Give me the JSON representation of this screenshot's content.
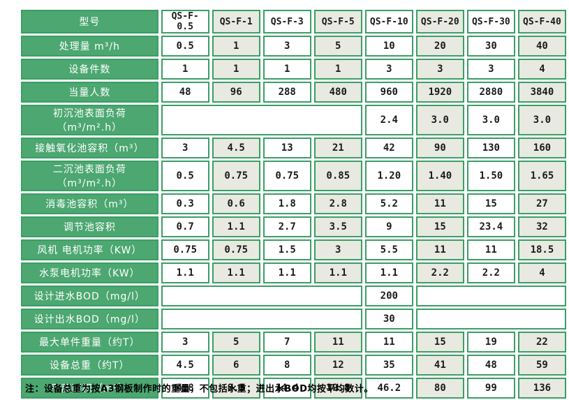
{
  "colors": {
    "label_green": "#4ca771",
    "border_green": "#3b9e66",
    "tint_cell": "#e8e9e0",
    "cell_white": "#ffffff",
    "value_text": "#1b1b1b"
  },
  "table": {
    "header_label": "型号",
    "models": [
      "QS-F-0.5",
      "QS-F-1",
      "QS-F-3",
      "QS-F-5",
      "QS-F-10",
      "QS-F-20",
      "QS-F-30",
      "QS-F-40"
    ],
    "rows": [
      {
        "label": "处理量 m³/h",
        "cells": [
          {
            "t": "0.5"
          },
          {
            "t": "1"
          },
          {
            "t": "3"
          },
          {
            "t": "5"
          },
          {
            "t": "10"
          },
          {
            "t": "20"
          },
          {
            "t": "30"
          },
          {
            "t": "40"
          }
        ]
      },
      {
        "label": "设备件数",
        "cells": [
          {
            "t": "1"
          },
          {
            "t": "1"
          },
          {
            "t": "1"
          },
          {
            "t": "1"
          },
          {
            "t": "3"
          },
          {
            "t": "3"
          },
          {
            "t": "3"
          },
          {
            "t": "4"
          }
        ]
      },
      {
        "label": "当量人数",
        "cells": [
          {
            "t": "48"
          },
          {
            "t": "96"
          },
          {
            "t": "288"
          },
          {
            "t": "480"
          },
          {
            "t": "960"
          },
          {
            "t": "1920"
          },
          {
            "t": "2880"
          },
          {
            "t": "3840"
          }
        ]
      },
      {
        "label": "初沉池表面负荷（m³/m².h）",
        "cells": [
          {
            "t": "",
            "span": 4
          },
          {
            "t": "2.4"
          },
          {
            "t": "3.0"
          },
          {
            "t": "3.0"
          },
          {
            "t": "3.0"
          }
        ]
      },
      {
        "label": "接触氧化池容积（m³）",
        "cells": [
          {
            "t": "3"
          },
          {
            "t": "4.5"
          },
          {
            "t": "13"
          },
          {
            "t": "21"
          },
          {
            "t": "42"
          },
          {
            "t": "90"
          },
          {
            "t": "130"
          },
          {
            "t": "160"
          }
        ]
      },
      {
        "label": "二沉池表面负荷（m³/m².h）",
        "cells": [
          {
            "t": "0.5"
          },
          {
            "t": "0.75"
          },
          {
            "t": "0.75"
          },
          {
            "t": "0.85"
          },
          {
            "t": "1.20"
          },
          {
            "t": "1.40"
          },
          {
            "t": "1.50"
          },
          {
            "t": "1.65"
          }
        ]
      },
      {
        "label": "消毒池容积（m³）",
        "cells": [
          {
            "t": "0.3"
          },
          {
            "t": "0.6"
          },
          {
            "t": "1.8"
          },
          {
            "t": "2.8"
          },
          {
            "t": "5.2"
          },
          {
            "t": "11"
          },
          {
            "t": "15"
          },
          {
            "t": "27"
          }
        ]
      },
      {
        "label": "调节池容积",
        "cells": [
          {
            "t": "0.7"
          },
          {
            "t": "1.1"
          },
          {
            "t": "2.7"
          },
          {
            "t": "3.5"
          },
          {
            "t": "9"
          },
          {
            "t": "15"
          },
          {
            "t": "23.4"
          },
          {
            "t": "32"
          }
        ]
      },
      {
        "label": "风机 电机功率（KW）",
        "cells": [
          {
            "t": "0.75"
          },
          {
            "t": "0.75"
          },
          {
            "t": "1.5"
          },
          {
            "t": "3"
          },
          {
            "t": "5.5"
          },
          {
            "t": "11"
          },
          {
            "t": "11"
          },
          {
            "t": "18.5"
          }
        ]
      },
      {
        "label": "水泵电机功率（KW）",
        "cells": [
          {
            "t": "1.1"
          },
          {
            "t": "1.1"
          },
          {
            "t": "1.1"
          },
          {
            "t": "1.1"
          },
          {
            "t": "1.1"
          },
          {
            "t": "2.2"
          },
          {
            "t": "2.2"
          },
          {
            "t": "4"
          }
        ]
      },
      {
        "label": "设计进水BOD（mg/l）",
        "cells": [
          {
            "t": "",
            "span": 4
          },
          {
            "t": "200"
          },
          {
            "t": "",
            "span": 3
          }
        ]
      },
      {
        "label": "设计出水BOD（mg/l）",
        "cells": [
          {
            "t": "",
            "span": 4
          },
          {
            "t": "30"
          },
          {
            "t": "",
            "span": 3
          }
        ]
      },
      {
        "label": "最大单件重量（约T）",
        "cells": [
          {
            "t": "3"
          },
          {
            "t": "5"
          },
          {
            "t": "7"
          },
          {
            "t": "11"
          },
          {
            "t": "11"
          },
          {
            "t": "15"
          },
          {
            "t": "19"
          },
          {
            "t": "22"
          }
        ]
      },
      {
        "label": "设备总重（约T）",
        "cells": [
          {
            "t": "4.5"
          },
          {
            "t": "6"
          },
          {
            "t": "8"
          },
          {
            "t": "12"
          },
          {
            "t": "35"
          },
          {
            "t": "41"
          },
          {
            "t": "48"
          },
          {
            "t": "59"
          }
        ]
      },
      {
        "label": "平面面积（m²）",
        "cells": [
          {
            "t": "4.8"
          },
          {
            "t": "8.3"
          },
          {
            "t": "14.4"
          },
          {
            "t": "19.8"
          },
          {
            "t": "46.2"
          },
          {
            "t": "80"
          },
          {
            "t": "99"
          },
          {
            "t": "136"
          }
        ]
      }
    ]
  },
  "note": "注：设备总重为按A3钢板制作时的重量，不包括水重；进出水BOD均按平均数计。"
}
